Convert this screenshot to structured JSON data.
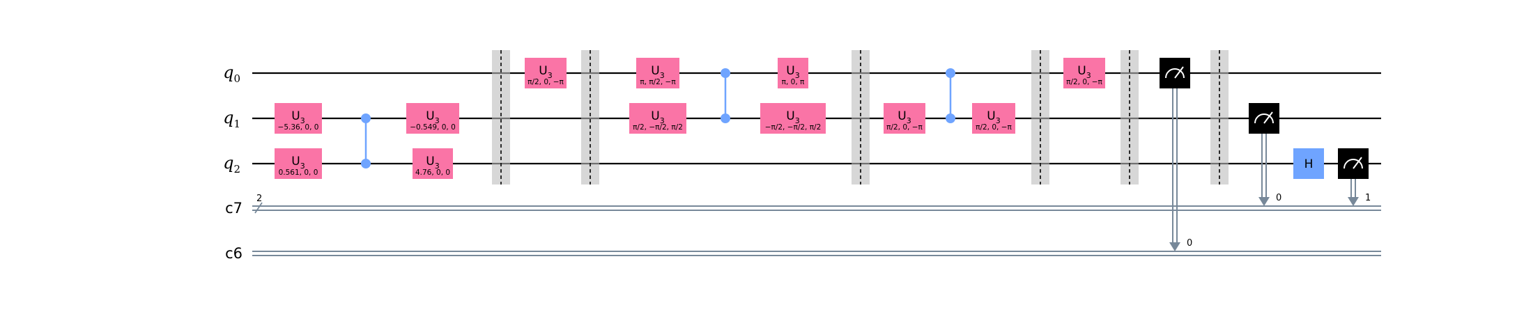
{
  "qubits": [
    {
      "name": "q",
      "index": "0"
    },
    {
      "name": "q",
      "index": "1"
    },
    {
      "name": "q",
      "index": "2"
    }
  ],
  "cregs": [
    {
      "name": "c7",
      "size": "2"
    },
    {
      "name": "c6"
    }
  ],
  "u3_gates": [
    {
      "label": "U",
      "sub": "3",
      "params": "−5.36, 0, 0"
    },
    {
      "label": "U",
      "sub": "3",
      "params": "0.561, 0, 0"
    },
    {
      "label": "U",
      "sub": "3",
      "params": "−0.549, 0, 0"
    },
    {
      "label": "U",
      "sub": "3",
      "params": "4.76, 0, 0"
    },
    {
      "label": "U",
      "sub": "3",
      "params": "π/2, 0, −π"
    },
    {
      "label": "U",
      "sub": "3",
      "params": "π, π/2, −π"
    },
    {
      "label": "U",
      "sub": "3",
      "params": "π/2, −π/2, π/2"
    },
    {
      "label": "U",
      "sub": "3",
      "params": "π, 0, π"
    },
    {
      "label": "U",
      "sub": "3",
      "params": "−π/2, −π/2, π/2"
    },
    {
      "label": "U",
      "sub": "3",
      "params": "π/2, 0, −π"
    },
    {
      "label": "U",
      "sub": "3",
      "params": "π/2, 0, −π"
    },
    {
      "label": "U",
      "sub": "3",
      "params": "π/2, 0, −π"
    }
  ],
  "h_gate": {
    "label": "H"
  },
  "measurements": [
    {
      "qubit": "q0",
      "creg": "c6",
      "bit": "0"
    },
    {
      "qubit": "q1",
      "creg": "c7",
      "bit": "0"
    },
    {
      "qubit": "q2",
      "creg": "c7",
      "bit": "1"
    }
  ],
  "colors": {
    "u3": "#fa74a6",
    "h": "#6fa4ff",
    "control": "#6fa4ff",
    "classical": "#778899"
  }
}
